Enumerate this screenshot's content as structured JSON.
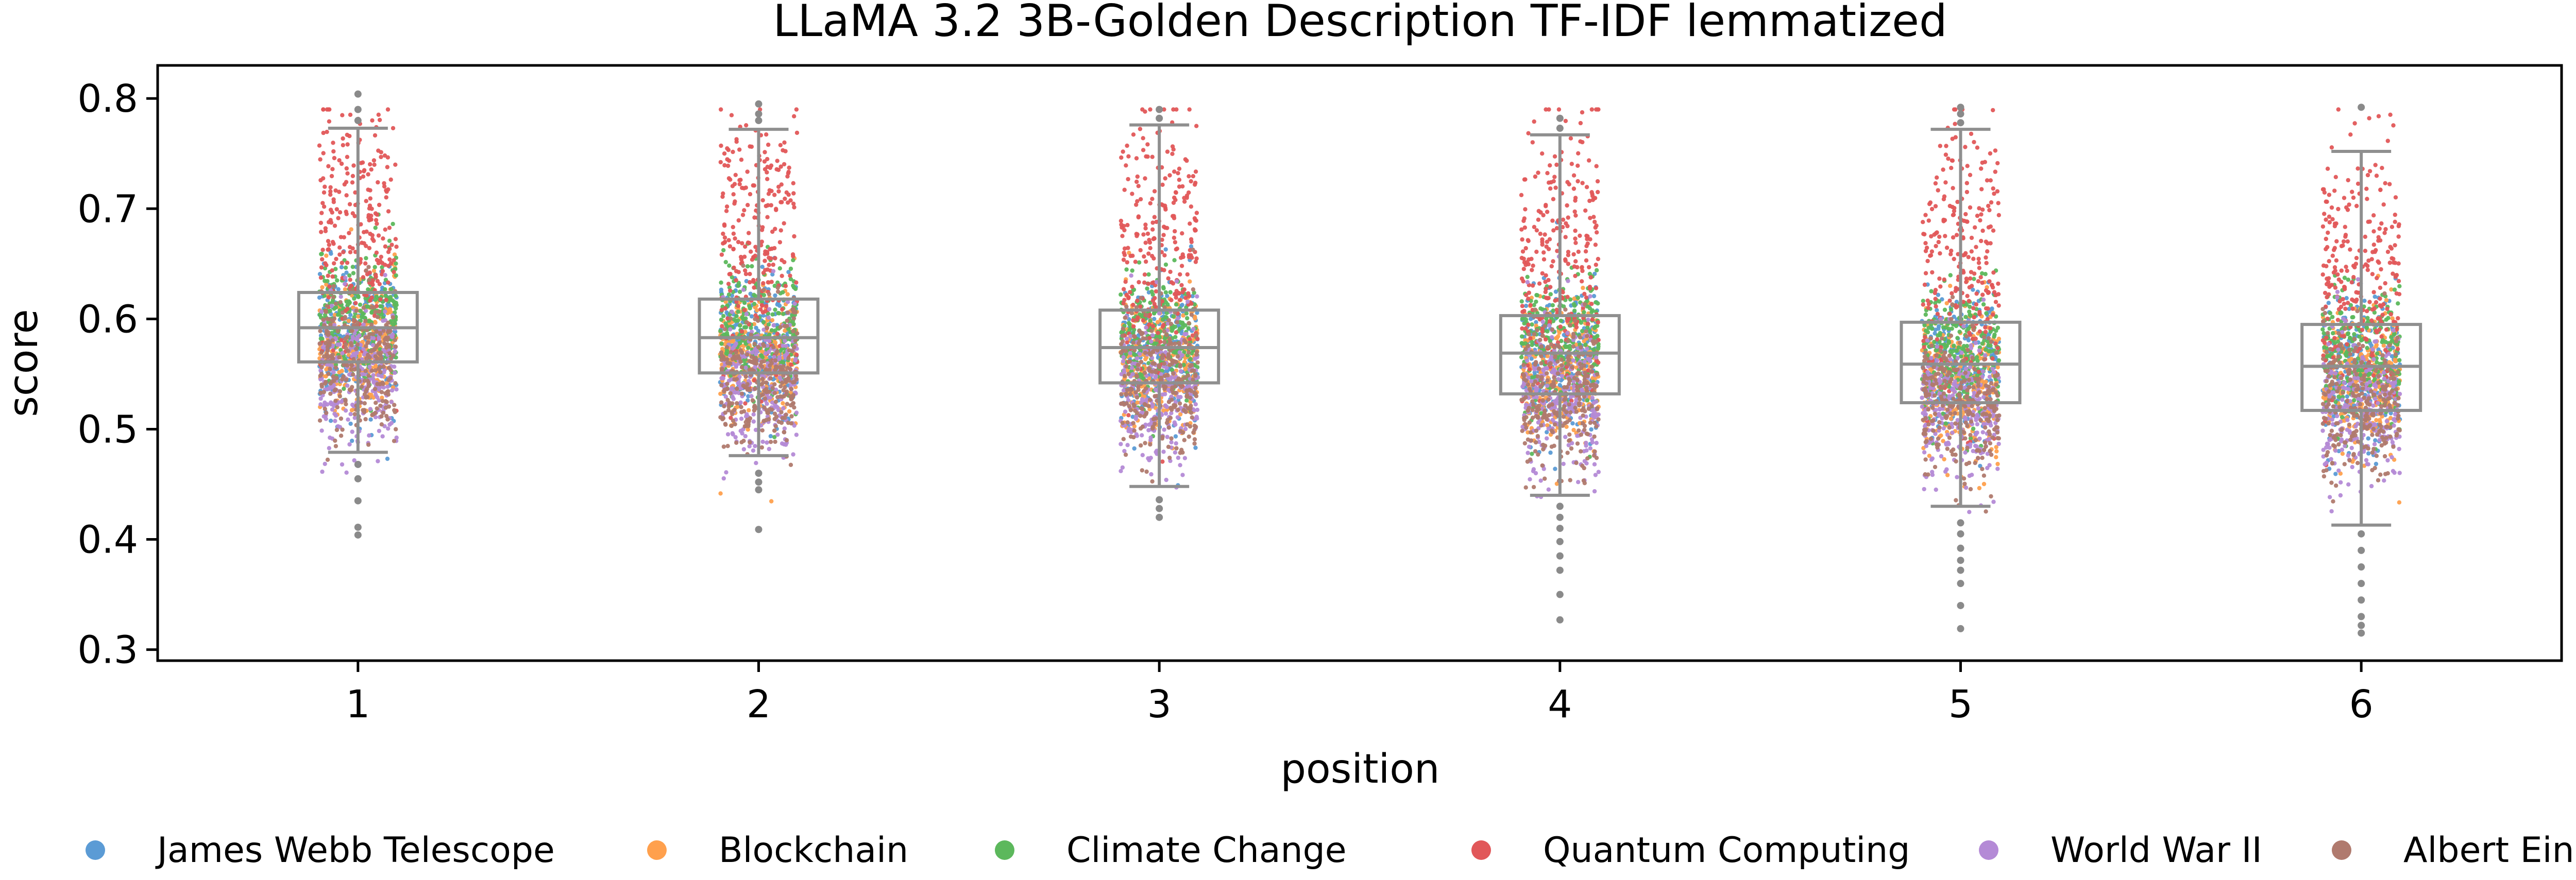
{
  "chart_data": {
    "type": "scatter",
    "title": "LLaMA 3.2 3B-Golden Description TF-IDF lemmatized",
    "xlabel": "position",
    "ylabel": "score",
    "ylim": [
      0.29,
      0.83
    ],
    "xlim": [
      0.5,
      6.5
    ],
    "yticks": [
      "0.3",
      "0.4",
      "0.5",
      "0.6",
      "0.7",
      "0.8"
    ],
    "categories": [
      "1",
      "2",
      "3",
      "4",
      "5",
      "6"
    ],
    "grid": false,
    "legend_position": "bottom",
    "overlay": "boxplot",
    "boxplots": [
      {
        "position": "1",
        "whisker_low": 0.479,
        "q1": 0.561,
        "median": 0.592,
        "q3": 0.624,
        "whisker_high": 0.773,
        "outliers": [
          0.404,
          0.411,
          0.435,
          0.455,
          0.468,
          0.78,
          0.79,
          0.804
        ]
      },
      {
        "position": "2",
        "whisker_low": 0.476,
        "q1": 0.551,
        "median": 0.583,
        "q3": 0.618,
        "whisker_high": 0.772,
        "outliers": [
          0.409,
          0.445,
          0.452,
          0.46,
          0.78,
          0.786,
          0.795
        ]
      },
      {
        "position": "3",
        "whisker_low": 0.448,
        "q1": 0.542,
        "median": 0.574,
        "q3": 0.608,
        "whisker_high": 0.776,
        "outliers": [
          0.42,
          0.428,
          0.436,
          0.782,
          0.79
        ]
      },
      {
        "position": "4",
        "whisker_low": 0.44,
        "q1": 0.532,
        "median": 0.569,
        "q3": 0.603,
        "whisker_high": 0.767,
        "outliers": [
          0.327,
          0.35,
          0.372,
          0.385,
          0.398,
          0.41,
          0.42,
          0.43,
          0.773,
          0.782
        ]
      },
      {
        "position": "5",
        "whisker_low": 0.43,
        "q1": 0.524,
        "median": 0.559,
        "q3": 0.597,
        "whisker_high": 0.772,
        "outliers": [
          0.319,
          0.34,
          0.36,
          0.372,
          0.381,
          0.392,
          0.405,
          0.415,
          0.778,
          0.786,
          0.792
        ]
      },
      {
        "position": "6",
        "whisker_low": 0.413,
        "q1": 0.517,
        "median": 0.557,
        "q3": 0.595,
        "whisker_high": 0.752,
        "outliers": [
          0.315,
          0.322,
          0.33,
          0.345,
          0.36,
          0.375,
          0.39,
          0.405,
          0.792
        ]
      }
    ],
    "series": [
      {
        "name": "James Webb Telescope",
        "color": "#5b9bd5",
        "center": 0.585,
        "spread": 0.032
      },
      {
        "name": "Blockchain",
        "color": "#ffa04d",
        "center": 0.575,
        "spread": 0.032
      },
      {
        "name": "Climate Change",
        "color": "#5cb85c",
        "center": 0.6,
        "spread": 0.03
      },
      {
        "name": "Quantum Computing",
        "color": "#e15759",
        "center": 0.68,
        "spread": 0.06
      },
      {
        "name": "World War II",
        "color": "#b48ad6",
        "center": 0.55,
        "spread": 0.034
      },
      {
        "name": "Albert Einstein",
        "color": "#b07a6e",
        "center": 0.555,
        "spread": 0.034
      }
    ],
    "position_shift": [
      0.0,
      -0.008,
      -0.016,
      -0.022,
      -0.03,
      -0.034
    ],
    "points_per_series_per_position": 260
  }
}
